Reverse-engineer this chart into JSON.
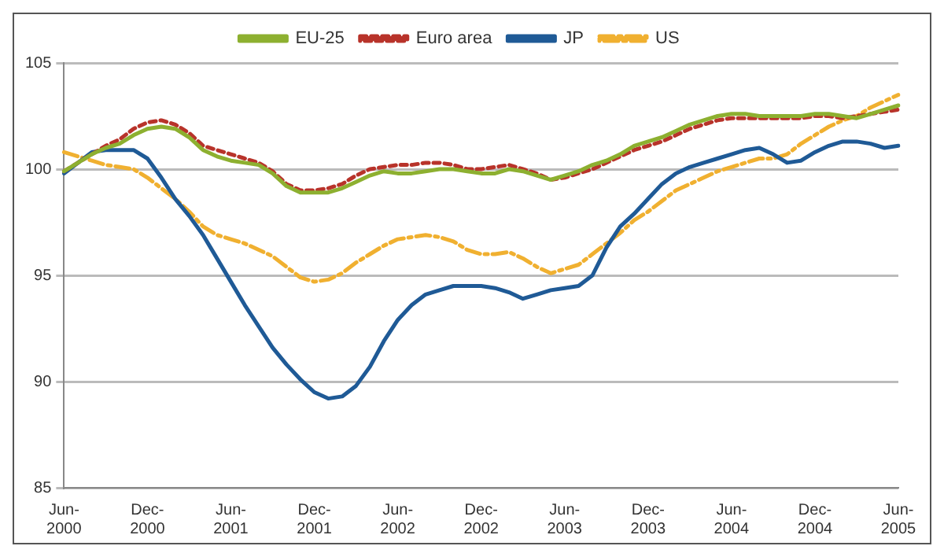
{
  "chart_data": {
    "type": "line",
    "categories": [
      "Jun-2000",
      null,
      null,
      null,
      null,
      null,
      "Dec-2000",
      null,
      null,
      null,
      null,
      null,
      "Jun-2001",
      null,
      null,
      null,
      null,
      null,
      "Dec-2001",
      null,
      null,
      null,
      null,
      null,
      "Jun-2002",
      null,
      null,
      null,
      null,
      null,
      "Dec-2002",
      null,
      null,
      null,
      null,
      null,
      "Jun-2003",
      null,
      null,
      null,
      null,
      null,
      "Dec-2003",
      null,
      null,
      null,
      null,
      null,
      "Jun-2004",
      null,
      null,
      null,
      null,
      null,
      "Dec-2004",
      null,
      null,
      null,
      null,
      null,
      "Jun-2005"
    ],
    "series": [
      {
        "name": "EU-25",
        "color": "#8db030",
        "line_style": "solid",
        "values": [
          99.9,
          100.3,
          100.7,
          101.0,
          101.2,
          101.6,
          101.9,
          102.0,
          101.9,
          101.5,
          100.9,
          100.6,
          100.4,
          100.3,
          100.2,
          99.8,
          99.2,
          98.9,
          98.9,
          98.9,
          99.1,
          99.4,
          99.7,
          99.9,
          99.8,
          99.8,
          99.9,
          100.0,
          100.0,
          99.9,
          99.8,
          99.8,
          100.0,
          99.9,
          99.7,
          99.5,
          99.7,
          99.9,
          100.2,
          100.4,
          100.7,
          101.1,
          101.3,
          101.5,
          101.8,
          102.1,
          102.3,
          102.5,
          102.6,
          102.6,
          102.5,
          102.5,
          102.5,
          102.5,
          102.6,
          102.6,
          102.5,
          102.4,
          102.6,
          102.8,
          103.0
        ]
      },
      {
        "name": "Euro area",
        "color": "#b8332a",
        "line_style": "dotted",
        "values": [
          99.9,
          100.3,
          100.7,
          101.1,
          101.4,
          101.9,
          102.2,
          102.3,
          102.1,
          101.7,
          101.1,
          100.9,
          100.7,
          100.5,
          100.3,
          99.9,
          99.3,
          99.0,
          99.0,
          99.1,
          99.3,
          99.7,
          100.0,
          100.1,
          100.2,
          100.2,
          100.3,
          100.3,
          100.2,
          100.0,
          100.0,
          100.1,
          100.2,
          100.0,
          99.8,
          99.5,
          99.6,
          99.8,
          100.0,
          100.3,
          100.6,
          100.9,
          101.1,
          101.3,
          101.6,
          101.9,
          102.1,
          102.3,
          102.4,
          102.4,
          102.4,
          102.4,
          102.4,
          102.4,
          102.5,
          102.5,
          102.4,
          102.5,
          102.6,
          102.7,
          102.8
        ]
      },
      {
        "name": "JP",
        "color": "#1f5a96",
        "line_style": "solid",
        "values": [
          99.8,
          100.3,
          100.8,
          100.9,
          100.9,
          100.9,
          100.5,
          99.6,
          98.6,
          97.8,
          96.9,
          95.8,
          94.7,
          93.6,
          92.6,
          91.6,
          90.8,
          90.1,
          89.5,
          89.2,
          89.3,
          89.8,
          90.7,
          91.9,
          92.9,
          93.6,
          94.1,
          94.3,
          94.5,
          94.5,
          94.5,
          94.4,
          94.2,
          93.9,
          94.1,
          94.3,
          94.4,
          94.5,
          95.0,
          96.3,
          97.3,
          97.9,
          98.6,
          99.3,
          99.8,
          100.1,
          100.3,
          100.5,
          100.7,
          100.9,
          101.0,
          100.7,
          100.3,
          100.4,
          100.8,
          101.1,
          101.3,
          101.3,
          101.2,
          101.0,
          101.1
        ]
      },
      {
        "name": "US",
        "color": "#f0b030",
        "line_style": "dashed",
        "values": [
          100.8,
          100.6,
          100.4,
          100.2,
          100.1,
          100.0,
          99.6,
          99.1,
          98.6,
          98.0,
          97.3,
          96.9,
          96.7,
          96.5,
          96.2,
          95.9,
          95.4,
          94.9,
          94.7,
          94.8,
          95.1,
          95.6,
          96.0,
          96.4,
          96.7,
          96.8,
          96.9,
          96.8,
          96.6,
          96.2,
          96.0,
          96.0,
          96.1,
          95.8,
          95.4,
          95.1,
          95.3,
          95.5,
          96.0,
          96.5,
          97.0,
          97.6,
          98.0,
          98.5,
          99.0,
          99.3,
          99.6,
          99.9,
          100.1,
          100.3,
          100.5,
          100.5,
          100.7,
          101.2,
          101.6,
          102.0,
          102.3,
          102.5,
          102.9,
          103.2,
          103.5
        ]
      }
    ],
    "ylim": [
      85,
      105
    ],
    "yticks": [
      85,
      90,
      95,
      100,
      105
    ],
    "grid": "y",
    "legend": "top",
    "marker": "none"
  }
}
